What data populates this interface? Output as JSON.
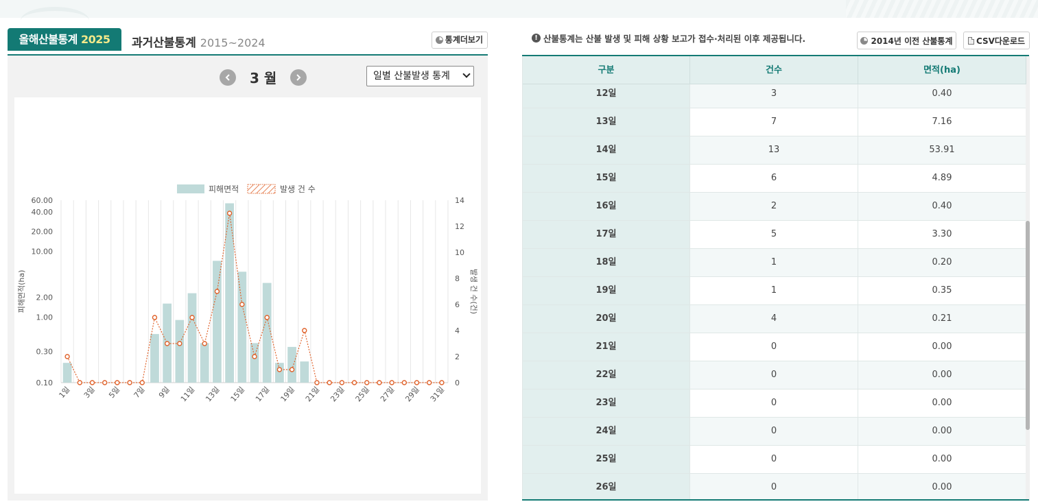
{
  "tabs": {
    "current_label": "올해산불통계",
    "current_year": "2025",
    "past_label": "과거산불통계",
    "past_range": "2015~2024"
  },
  "more_button": "통계더보기",
  "month_nav": {
    "label": "3 월"
  },
  "stat_select": {
    "value": "일별 산불발생 통계"
  },
  "notice": "산불통계는 산불 발생 및 피해 상황 보고가 접수·처리된 이후 제공됩니다.",
  "buttons": {
    "old_stats": "2014년 이전 산불통계",
    "csv": "CSV다운로드"
  },
  "table": {
    "headers": [
      "구분",
      "건수",
      "면적(ha)"
    ],
    "rows": [
      [
        "12일",
        "3",
        "0.40"
      ],
      [
        "13일",
        "7",
        "7.16"
      ],
      [
        "14일",
        "13",
        "53.91"
      ],
      [
        "15일",
        "6",
        "4.89"
      ],
      [
        "16일",
        "2",
        "0.40"
      ],
      [
        "17일",
        "5",
        "3.30"
      ],
      [
        "18일",
        "1",
        "0.20"
      ],
      [
        "19일",
        "1",
        "0.35"
      ],
      [
        "20일",
        "4",
        "0.21"
      ],
      [
        "21일",
        "0",
        "0.00"
      ],
      [
        "22일",
        "0",
        "0.00"
      ],
      [
        "23일",
        "0",
        "0.00"
      ],
      [
        "24일",
        "0",
        "0.00"
      ],
      [
        "25일",
        "0",
        "0.00"
      ],
      [
        "26일",
        "0",
        "0.00"
      ]
    ]
  },
  "colors": {
    "accent": "#137a74",
    "bar": "#bfdad9",
    "line": "#e0622a"
  },
  "chart_data": {
    "type": "bar",
    "legend": [
      "피해면적",
      "발생 건 수"
    ],
    "legend_position": "top",
    "ylabel_left": "피해면적(ha)",
    "ylabel_right": "발생 건 수(건)",
    "y_left_scale": "log",
    "y_left_ticks": [
      "0.10",
      "0.30",
      "1.00",
      "2.00",
      "10.00",
      "20.00",
      "40.00",
      "60.00"
    ],
    "y_left_range": [
      0.1,
      60
    ],
    "y_right_ticks": [
      "0",
      "2",
      "4",
      "6",
      "8",
      "10",
      "12",
      "14"
    ],
    "y_right_range": [
      0,
      14
    ],
    "x_tick_labels": [
      "1일",
      "3일",
      "5일",
      "7일",
      "9일",
      "11일",
      "13일",
      "15일",
      "17일",
      "19일",
      "21일",
      "23일",
      "25일",
      "27일",
      "29일",
      "31일"
    ],
    "days": [
      1,
      2,
      3,
      4,
      5,
      6,
      7,
      8,
      9,
      10,
      11,
      12,
      13,
      14,
      15,
      16,
      17,
      18,
      19,
      20,
      21,
      22,
      23,
      24,
      25,
      26,
      27,
      28,
      29,
      30,
      31
    ],
    "series": [
      {
        "name": "피해면적",
        "type": "bar",
        "values": [
          0.2,
          0,
          0,
          0,
          0,
          0,
          0,
          0.55,
          1.6,
          0.9,
          2.3,
          0.4,
          7.16,
          53.91,
          4.89,
          0.4,
          3.3,
          0.2,
          0.35,
          0.21,
          0,
          0,
          0,
          0,
          0,
          0,
          0,
          0,
          0,
          0,
          0
        ]
      },
      {
        "name": "발생 건 수",
        "type": "line",
        "values": [
          2,
          0,
          0,
          0,
          0,
          0,
          0,
          5,
          3,
          3,
          5,
          3,
          7,
          13,
          6,
          2,
          5,
          1,
          1,
          4,
          0,
          0,
          0,
          0,
          0,
          0,
          0,
          0,
          0,
          0,
          0
        ]
      }
    ]
  }
}
